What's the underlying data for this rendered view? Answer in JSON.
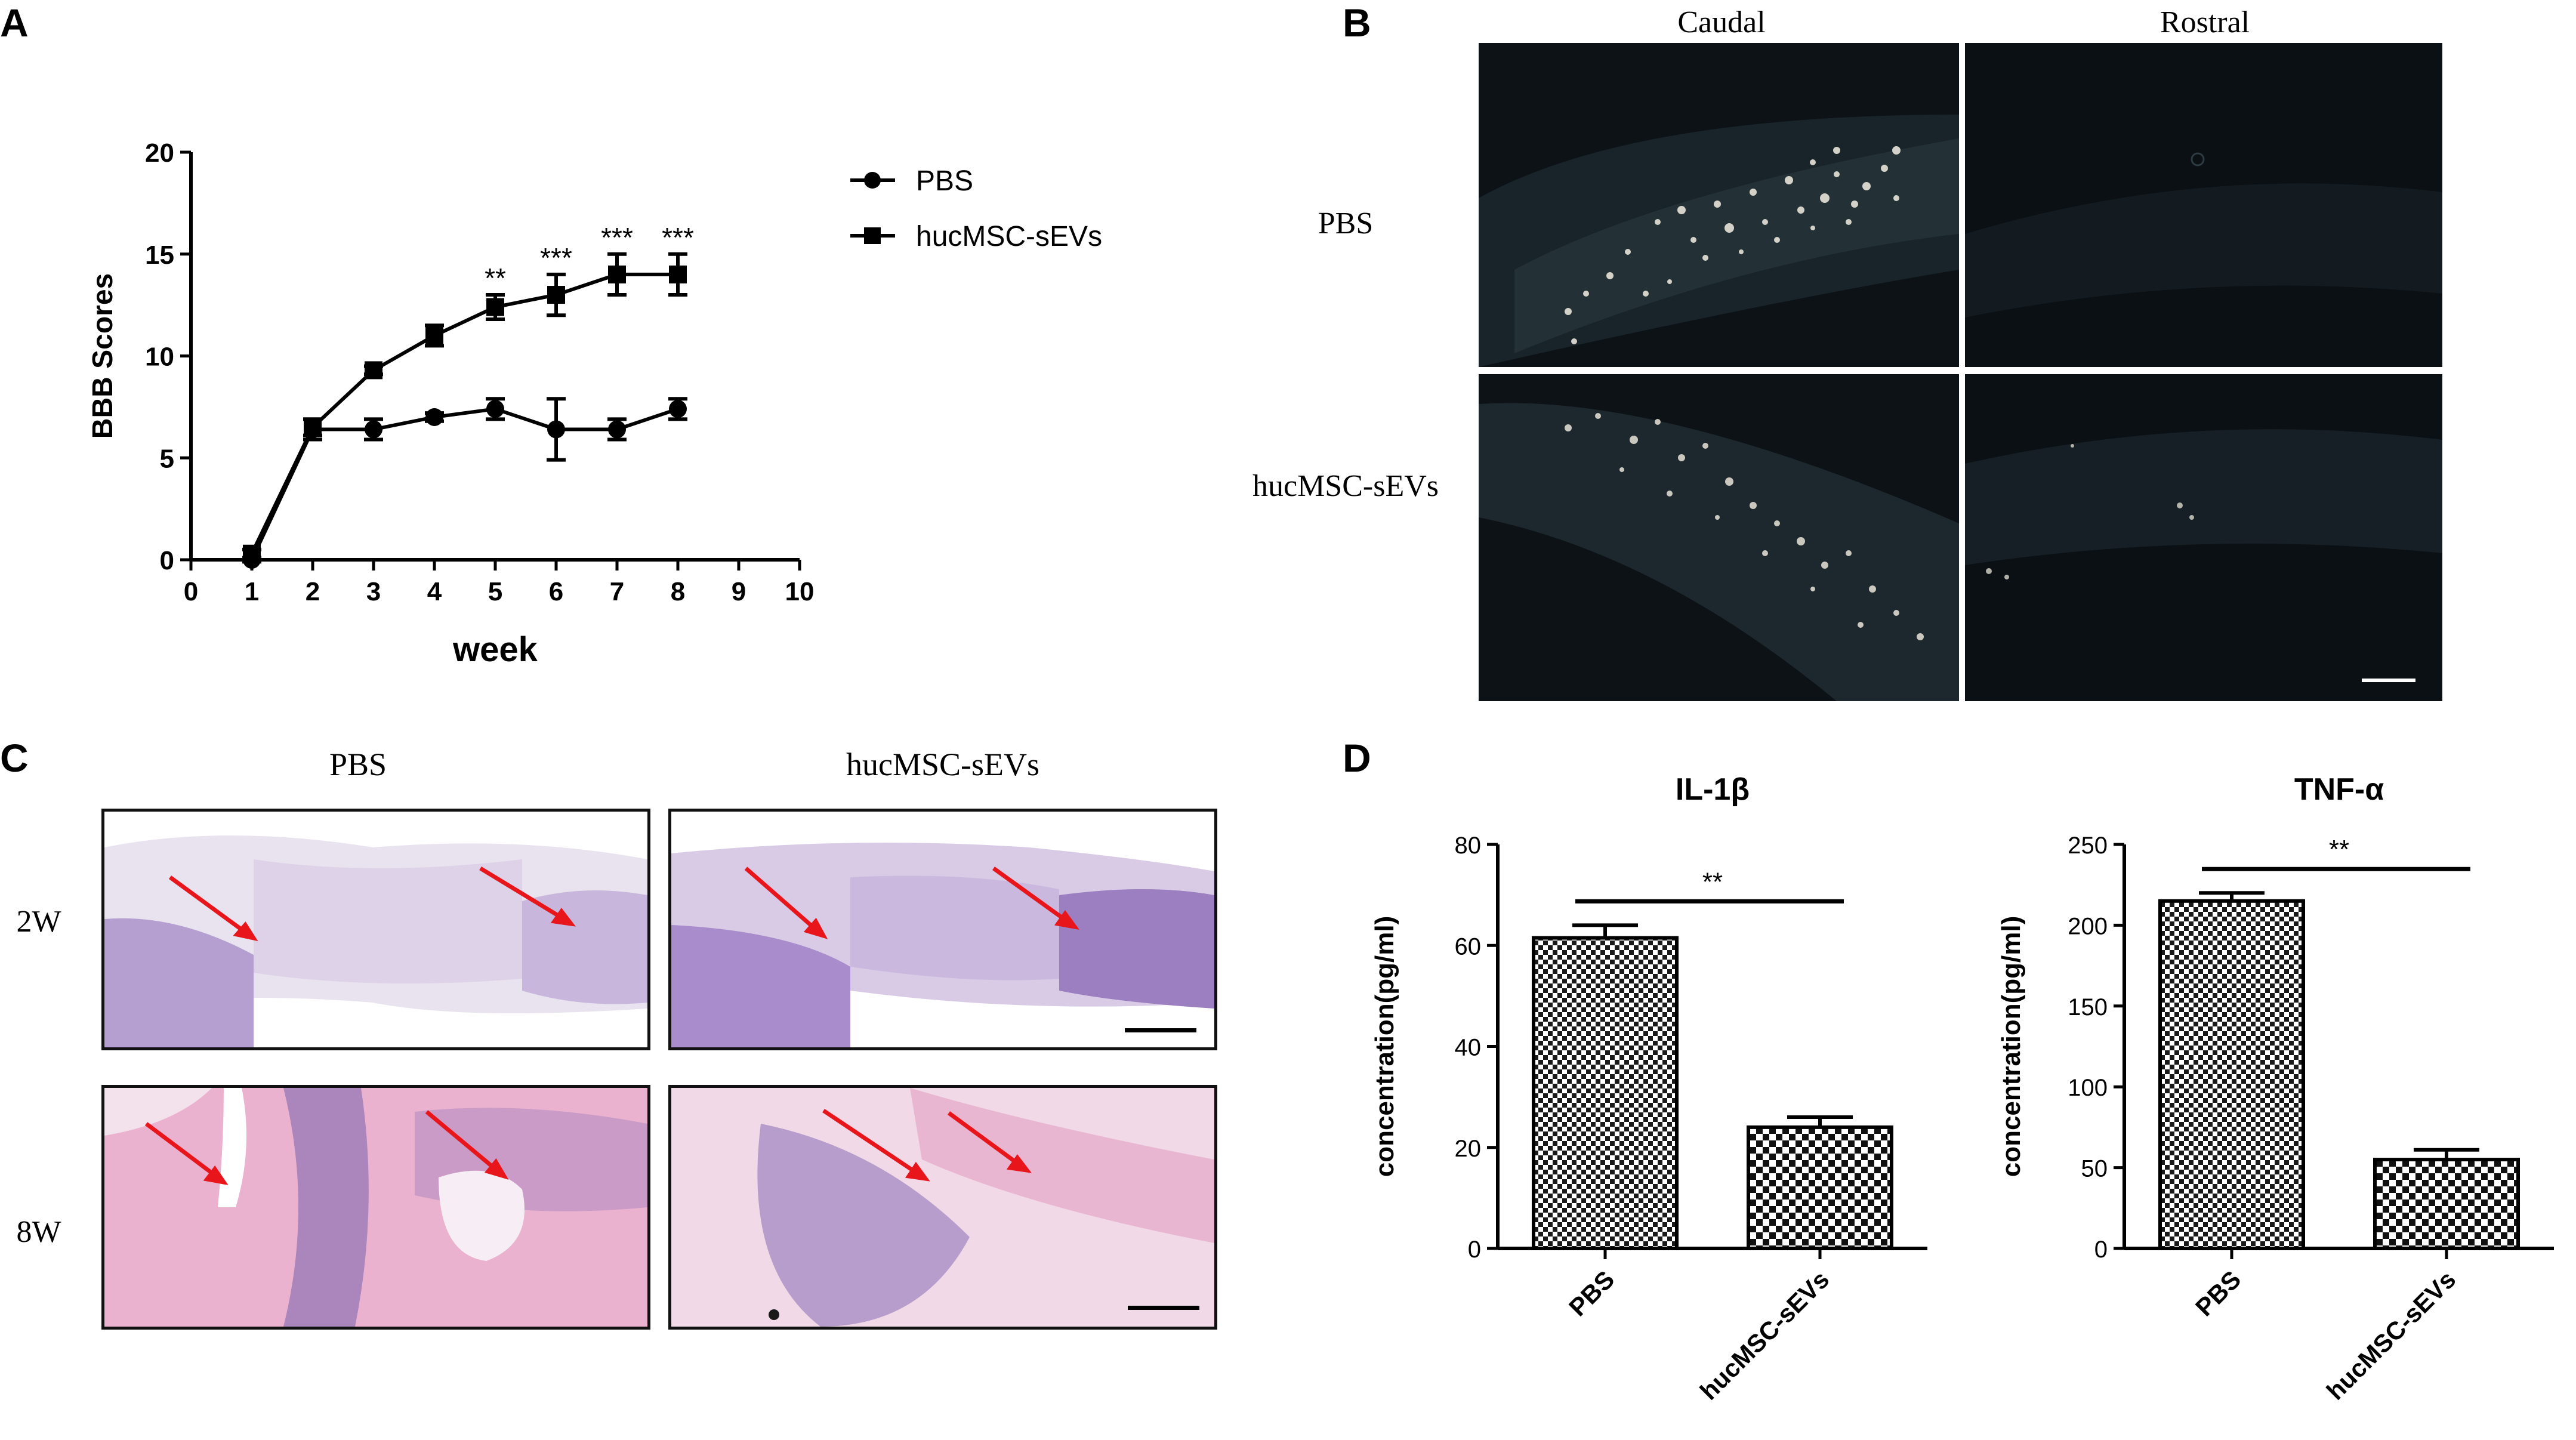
{
  "panels": {
    "a": "A",
    "b": "B",
    "c": "C",
    "d": "D"
  },
  "chart_data": [
    {
      "type": "line",
      "panel": "A",
      "xlabel": "week",
      "ylabel": "BBB Scores",
      "xlim": [
        0,
        10
      ],
      "ylim": [
        0,
        20
      ],
      "x_ticks": [
        "0",
        "1",
        "2",
        "3",
        "4",
        "5",
        "6",
        "7",
        "8",
        "9",
        "10"
      ],
      "y_ticks": [
        "0",
        "5",
        "10",
        "15",
        "20"
      ],
      "x": [
        1,
        2,
        3,
        4,
        5,
        6,
        7,
        8
      ],
      "series": [
        {
          "name": "PBS",
          "marker": "circle",
          "values": [
            0,
            6.4,
            6.4,
            7.0,
            7.4,
            6.4,
            6.4,
            7.4
          ],
          "error": [
            0.1,
            0.5,
            0.5,
            0.2,
            0.5,
            1.5,
            0.5,
            0.5
          ]
        },
        {
          "name": "hucMSC-sEVs",
          "marker": "square",
          "values": [
            0.3,
            6.5,
            9.3,
            11.0,
            12.4,
            13.0,
            14.0,
            14.0
          ],
          "error": [
            0.2,
            0.4,
            0.2,
            0.5,
            0.6,
            1.0,
            1.0,
            1.0
          ]
        }
      ],
      "annotations": [
        {
          "x": 5,
          "text": "**"
        },
        {
          "x": 6,
          "text": "***"
        },
        {
          "x": 7,
          "text": "***"
        },
        {
          "x": 8,
          "text": "***"
        }
      ],
      "legend_position": "right"
    },
    {
      "type": "bar",
      "panel": "D",
      "title": "IL-1β",
      "ylabel": "concentration(pg/ml)",
      "categories": [
        "PBS",
        "hucMSC-sEVs"
      ],
      "values": [
        61.5,
        24.0
      ],
      "error": [
        2.5,
        2.0
      ],
      "ylim": [
        0,
        80
      ],
      "y_ticks": [
        "0",
        "20",
        "40",
        "60",
        "80"
      ],
      "significance": "**"
    },
    {
      "type": "bar",
      "panel": "D",
      "title": "TNF-α",
      "ylabel": "concentration(pg/ml)",
      "categories": [
        "PBS",
        "hucMSC-sEVs"
      ],
      "values": [
        215,
        55
      ],
      "error": [
        5,
        6
      ],
      "ylim": [
        0,
        250
      ],
      "y_ticks": [
        "0",
        "50",
        "100",
        "150",
        "200",
        "250"
      ],
      "significance": "**"
    }
  ],
  "panel_b": {
    "col_labels": [
      "Caudal",
      "Rostral"
    ],
    "row_labels": [
      "PBS",
      "hucMSC-sEVs"
    ]
  },
  "panel_c": {
    "col_labels": [
      "PBS",
      "hucMSC-sEVs"
    ],
    "row_labels": [
      "2W",
      "8W"
    ]
  },
  "colors": {
    "fluor_bg": "#0c1216",
    "fluor_signal": "#e8e4d8",
    "he_light": "#e6dfee",
    "he_purple": "#9b7fc0",
    "he_pink": "#e7a7c9",
    "arrow": "#e8161b"
  }
}
